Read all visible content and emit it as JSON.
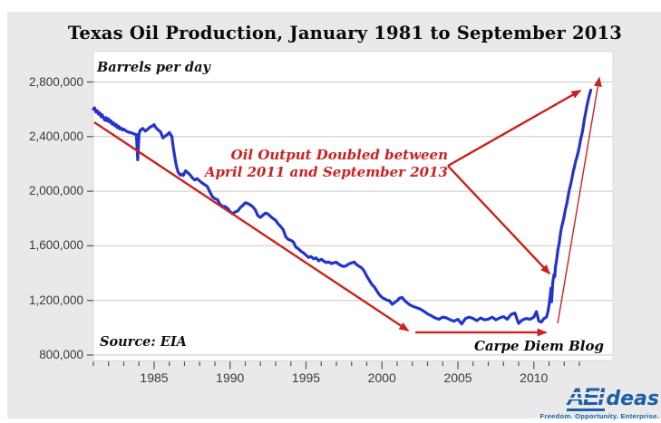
{
  "header": {
    "title": "Texas Oil Production, January 1981 to September 2013"
  },
  "chart_data": {
    "type": "line",
    "title": "Texas Oil Production, January 1981 to September 2013",
    "unit_label": "Barrels per day",
    "source": "Source: EIA",
    "credit": "Carpe Diem Blog",
    "xlabel": "",
    "ylabel": "Barrels per day",
    "xlim": [
      1981,
      2015.2
    ],
    "ylim": [
      800000,
      2800000
    ],
    "grid": "horizontal",
    "legend": "none",
    "yticks": [
      {
        "value": 800000,
        "label": "800,000"
      },
      {
        "value": 1200000,
        "label": "1,200,000"
      },
      {
        "value": 1600000,
        "label": "1,600,000"
      },
      {
        "value": 2000000,
        "label": "2,000,000"
      },
      {
        "value": 2400000,
        "label": "2,400,000"
      },
      {
        "value": 2800000,
        "label": "2,800,000"
      }
    ],
    "xticks_major": [
      {
        "value": 1985,
        "label": "1985"
      },
      {
        "value": 1990,
        "label": "1990"
      },
      {
        "value": 1995,
        "label": "1995"
      },
      {
        "value": 2000,
        "label": "2000"
      },
      {
        "value": 2005,
        "label": "2005"
      },
      {
        "value": 2010,
        "label": "2010"
      }
    ],
    "xticks_minor_range": [
      1981,
      2013
    ],
    "series": [
      {
        "name": "Texas oil production (barrels per day)",
        "color": "#2433cc",
        "points": [
          [
            1981.0,
            2600000
          ],
          [
            1981.08,
            2610000
          ],
          [
            1981.17,
            2580000
          ],
          [
            1981.25,
            2590000
          ],
          [
            1981.33,
            2565000
          ],
          [
            1981.42,
            2575000
          ],
          [
            1981.5,
            2545000
          ],
          [
            1981.58,
            2560000
          ],
          [
            1981.67,
            2535000
          ],
          [
            1981.75,
            2520000
          ],
          [
            1981.83,
            2540000
          ],
          [
            1981.92,
            2515000
          ],
          [
            1982.0,
            2530000
          ],
          [
            1982.08,
            2505000
          ],
          [
            1982.17,
            2515000
          ],
          [
            1982.25,
            2490000
          ],
          [
            1982.33,
            2500000
          ],
          [
            1982.42,
            2478000
          ],
          [
            1982.5,
            2488000
          ],
          [
            1982.58,
            2465000
          ],
          [
            1982.67,
            2475000
          ],
          [
            1982.75,
            2455000
          ],
          [
            1982.83,
            2462000
          ],
          [
            1982.92,
            2448000
          ],
          [
            1983.0,
            2455000
          ],
          [
            1983.17,
            2440000
          ],
          [
            1983.33,
            2432000
          ],
          [
            1983.5,
            2428000
          ],
          [
            1983.67,
            2420000
          ],
          [
            1983.83,
            2415000
          ],
          [
            1983.92,
            2230000
          ],
          [
            1984.0,
            2420000
          ],
          [
            1984.08,
            2445000
          ],
          [
            1984.25,
            2460000
          ],
          [
            1984.42,
            2440000
          ],
          [
            1984.58,
            2455000
          ],
          [
            1984.75,
            2470000
          ],
          [
            1984.92,
            2480000
          ],
          [
            1985.0,
            2487000
          ],
          [
            1985.08,
            2470000
          ],
          [
            1985.25,
            2450000
          ],
          [
            1985.42,
            2435000
          ],
          [
            1985.58,
            2390000
          ],
          [
            1985.75,
            2405000
          ],
          [
            1985.92,
            2420000
          ],
          [
            1986.0,
            2430000
          ],
          [
            1986.08,
            2415000
          ],
          [
            1986.17,
            2400000
          ],
          [
            1986.25,
            2330000
          ],
          [
            1986.33,
            2270000
          ],
          [
            1986.42,
            2210000
          ],
          [
            1986.5,
            2170000
          ],
          [
            1986.58,
            2140000
          ],
          [
            1986.67,
            2125000
          ],
          [
            1986.75,
            2118000
          ],
          [
            1986.83,
            2125000
          ],
          [
            1986.92,
            2115000
          ],
          [
            1987.0,
            2135000
          ],
          [
            1987.08,
            2150000
          ],
          [
            1987.17,
            2140000
          ],
          [
            1987.33,
            2125000
          ],
          [
            1987.5,
            2100000
          ],
          [
            1987.67,
            2082000
          ],
          [
            1987.83,
            2092000
          ],
          [
            1988.0,
            2075000
          ],
          [
            1988.17,
            2060000
          ],
          [
            1988.33,
            2048000
          ],
          [
            1988.5,
            2035000
          ],
          [
            1988.67,
            1995000
          ],
          [
            1988.83,
            1960000
          ],
          [
            1989.0,
            1945000
          ],
          [
            1989.17,
            1938000
          ],
          [
            1989.33,
            1905000
          ],
          [
            1989.5,
            1890000
          ],
          [
            1989.67,
            1888000
          ],
          [
            1989.83,
            1875000
          ],
          [
            1990.0,
            1850000
          ],
          [
            1990.17,
            1835000
          ],
          [
            1990.33,
            1848000
          ],
          [
            1990.5,
            1855000
          ],
          [
            1990.67,
            1880000
          ],
          [
            1990.83,
            1895000
          ],
          [
            1991.0,
            1915000
          ],
          [
            1991.17,
            1910000
          ],
          [
            1991.33,
            1900000
          ],
          [
            1991.5,
            1885000
          ],
          [
            1991.67,
            1862000
          ],
          [
            1991.83,
            1820000
          ],
          [
            1992.0,
            1808000
          ],
          [
            1992.17,
            1825000
          ],
          [
            1992.33,
            1840000
          ],
          [
            1992.5,
            1832000
          ],
          [
            1992.67,
            1815000
          ],
          [
            1992.83,
            1800000
          ],
          [
            1993.0,
            1788000
          ],
          [
            1993.17,
            1760000
          ],
          [
            1993.33,
            1742000
          ],
          [
            1993.5,
            1718000
          ],
          [
            1993.67,
            1665000
          ],
          [
            1993.83,
            1648000
          ],
          [
            1994.0,
            1640000
          ],
          [
            1994.17,
            1628000
          ],
          [
            1994.33,
            1590000
          ],
          [
            1994.5,
            1578000
          ],
          [
            1994.67,
            1560000
          ],
          [
            1994.83,
            1548000
          ],
          [
            1995.0,
            1532000
          ],
          [
            1995.17,
            1515000
          ],
          [
            1995.33,
            1522000
          ],
          [
            1995.5,
            1505000
          ],
          [
            1995.67,
            1512000
          ],
          [
            1995.83,
            1490000
          ],
          [
            1996.0,
            1502000
          ],
          [
            1996.17,
            1488000
          ],
          [
            1996.33,
            1478000
          ],
          [
            1996.5,
            1482000
          ],
          [
            1996.67,
            1470000
          ],
          [
            1996.83,
            1476000
          ],
          [
            1997.0,
            1480000
          ],
          [
            1997.17,
            1465000
          ],
          [
            1997.33,
            1455000
          ],
          [
            1997.5,
            1448000
          ],
          [
            1997.67,
            1456000
          ],
          [
            1997.83,
            1468000
          ],
          [
            1998.0,
            1475000
          ],
          [
            1998.17,
            1482000
          ],
          [
            1998.33,
            1462000
          ],
          [
            1998.5,
            1450000
          ],
          [
            1998.67,
            1438000
          ],
          [
            1998.83,
            1415000
          ],
          [
            1999.0,
            1378000
          ],
          [
            1999.17,
            1348000
          ],
          [
            1999.33,
            1318000
          ],
          [
            1999.5,
            1298000
          ],
          [
            1999.67,
            1268000
          ],
          [
            1999.83,
            1242000
          ],
          [
            2000.0,
            1222000
          ],
          [
            2000.17,
            1212000
          ],
          [
            2000.33,
            1202000
          ],
          [
            2000.5,
            1198000
          ],
          [
            2000.67,
            1172000
          ],
          [
            2000.83,
            1185000
          ],
          [
            2001.0,
            1198000
          ],
          [
            2001.17,
            1218000
          ],
          [
            2001.33,
            1222000
          ],
          [
            2001.5,
            1198000
          ],
          [
            2001.67,
            1182000
          ],
          [
            2001.83,
            1168000
          ],
          [
            2002.0,
            1158000
          ],
          [
            2002.25,
            1148000
          ],
          [
            2002.5,
            1138000
          ],
          [
            2002.75,
            1122000
          ],
          [
            2003.0,
            1102000
          ],
          [
            2003.25,
            1088000
          ],
          [
            2003.5,
            1072000
          ],
          [
            2003.75,
            1062000
          ],
          [
            2004.0,
            1078000
          ],
          [
            2004.25,
            1072000
          ],
          [
            2004.5,
            1058000
          ],
          [
            2004.75,
            1048000
          ],
          [
            2005.0,
            1062000
          ],
          [
            2005.25,
            1028000
          ],
          [
            2005.5,
            1068000
          ],
          [
            2005.75,
            1078000
          ],
          [
            2006.0,
            1068000
          ],
          [
            2006.25,
            1052000
          ],
          [
            2006.5,
            1072000
          ],
          [
            2006.75,
            1058000
          ],
          [
            2007.0,
            1063000
          ],
          [
            2007.25,
            1078000
          ],
          [
            2007.5,
            1058000
          ],
          [
            2007.75,
            1072000
          ],
          [
            2008.0,
            1082000
          ],
          [
            2008.25,
            1062000
          ],
          [
            2008.5,
            1098000
          ],
          [
            2008.75,
            1108000
          ],
          [
            2009.0,
            1032000
          ],
          [
            2009.25,
            1058000
          ],
          [
            2009.5,
            1068000
          ],
          [
            2009.75,
            1062000
          ],
          [
            2010.0,
            1078000
          ],
          [
            2010.17,
            1118000
          ],
          [
            2010.33,
            1048000
          ],
          [
            2010.5,
            1042000
          ],
          [
            2010.67,
            1068000
          ],
          [
            2010.83,
            1078000
          ],
          [
            2010.92,
            1115000
          ],
          [
            2011.0,
            1165000
          ],
          [
            2011.08,
            1235000
          ],
          [
            2011.13,
            1290000
          ],
          [
            2011.17,
            1190000
          ],
          [
            2011.25,
            1335000
          ],
          [
            2011.33,
            1390000
          ],
          [
            2011.38,
            1375000
          ],
          [
            2011.42,
            1440000
          ],
          [
            2011.5,
            1498000
          ],
          [
            2011.58,
            1568000
          ],
          [
            2011.67,
            1618000
          ],
          [
            2011.75,
            1688000
          ],
          [
            2011.83,
            1738000
          ],
          [
            2011.92,
            1778000
          ],
          [
            2012.0,
            1818000
          ],
          [
            2012.08,
            1868000
          ],
          [
            2012.17,
            1908000
          ],
          [
            2012.25,
            1958000
          ],
          [
            2012.33,
            2008000
          ],
          [
            2012.42,
            2048000
          ],
          [
            2012.5,
            2088000
          ],
          [
            2012.58,
            2138000
          ],
          [
            2012.67,
            2178000
          ],
          [
            2012.75,
            2218000
          ],
          [
            2012.83,
            2248000
          ],
          [
            2012.92,
            2288000
          ],
          [
            2013.0,
            2328000
          ],
          [
            2013.08,
            2378000
          ],
          [
            2013.17,
            2418000
          ],
          [
            2013.25,
            2468000
          ],
          [
            2013.33,
            2528000
          ],
          [
            2013.42,
            2578000
          ],
          [
            2013.5,
            2628000
          ],
          [
            2013.58,
            2668000
          ],
          [
            2013.67,
            2708000
          ],
          [
            2013.75,
            2740000
          ]
        ]
      }
    ],
    "annotation": {
      "line1": "Oil Output Doubled between",
      "line2": "April 2011 and September 2013",
      "color": "#cb221f"
    },
    "annotation_lines": [
      {
        "name": "downtrend-line",
        "x1": 1981.06,
        "y1": 2505000,
        "x2": 2001.72,
        "y2": 980000,
        "arrow": "end",
        "width": 2.4
      },
      {
        "name": "flat-bottom-arrow",
        "x1": 2002.2,
        "y1": 966000,
        "x2": 2010.8,
        "y2": 966000,
        "arrow": "end",
        "width": 2.4
      },
      {
        "name": "surge-line",
        "x1": 2011.57,
        "y1": 1032000,
        "x2": 2014.31,
        "y2": 2830000,
        "arrow": "end",
        "width": 1.4
      },
      {
        "name": "callout-to-peak",
        "x1": 2004.34,
        "y1": 2186000,
        "x2": 2013.06,
        "y2": 2737000,
        "arrow": "end",
        "width": 2.4
      },
      {
        "name": "callout-to-april2011",
        "x1": 2004.34,
        "y1": 2186000,
        "x2": 2011.03,
        "y2": 1397000,
        "arrow": "end",
        "width": 2.4
      }
    ],
    "annotation_color": "#cb221f"
  },
  "logo": {
    "aei": "AEI",
    "ideas": "deas",
    "tagline": "Freedom. Opportunity. Enterprise.",
    "color": "#1d5fa6"
  }
}
